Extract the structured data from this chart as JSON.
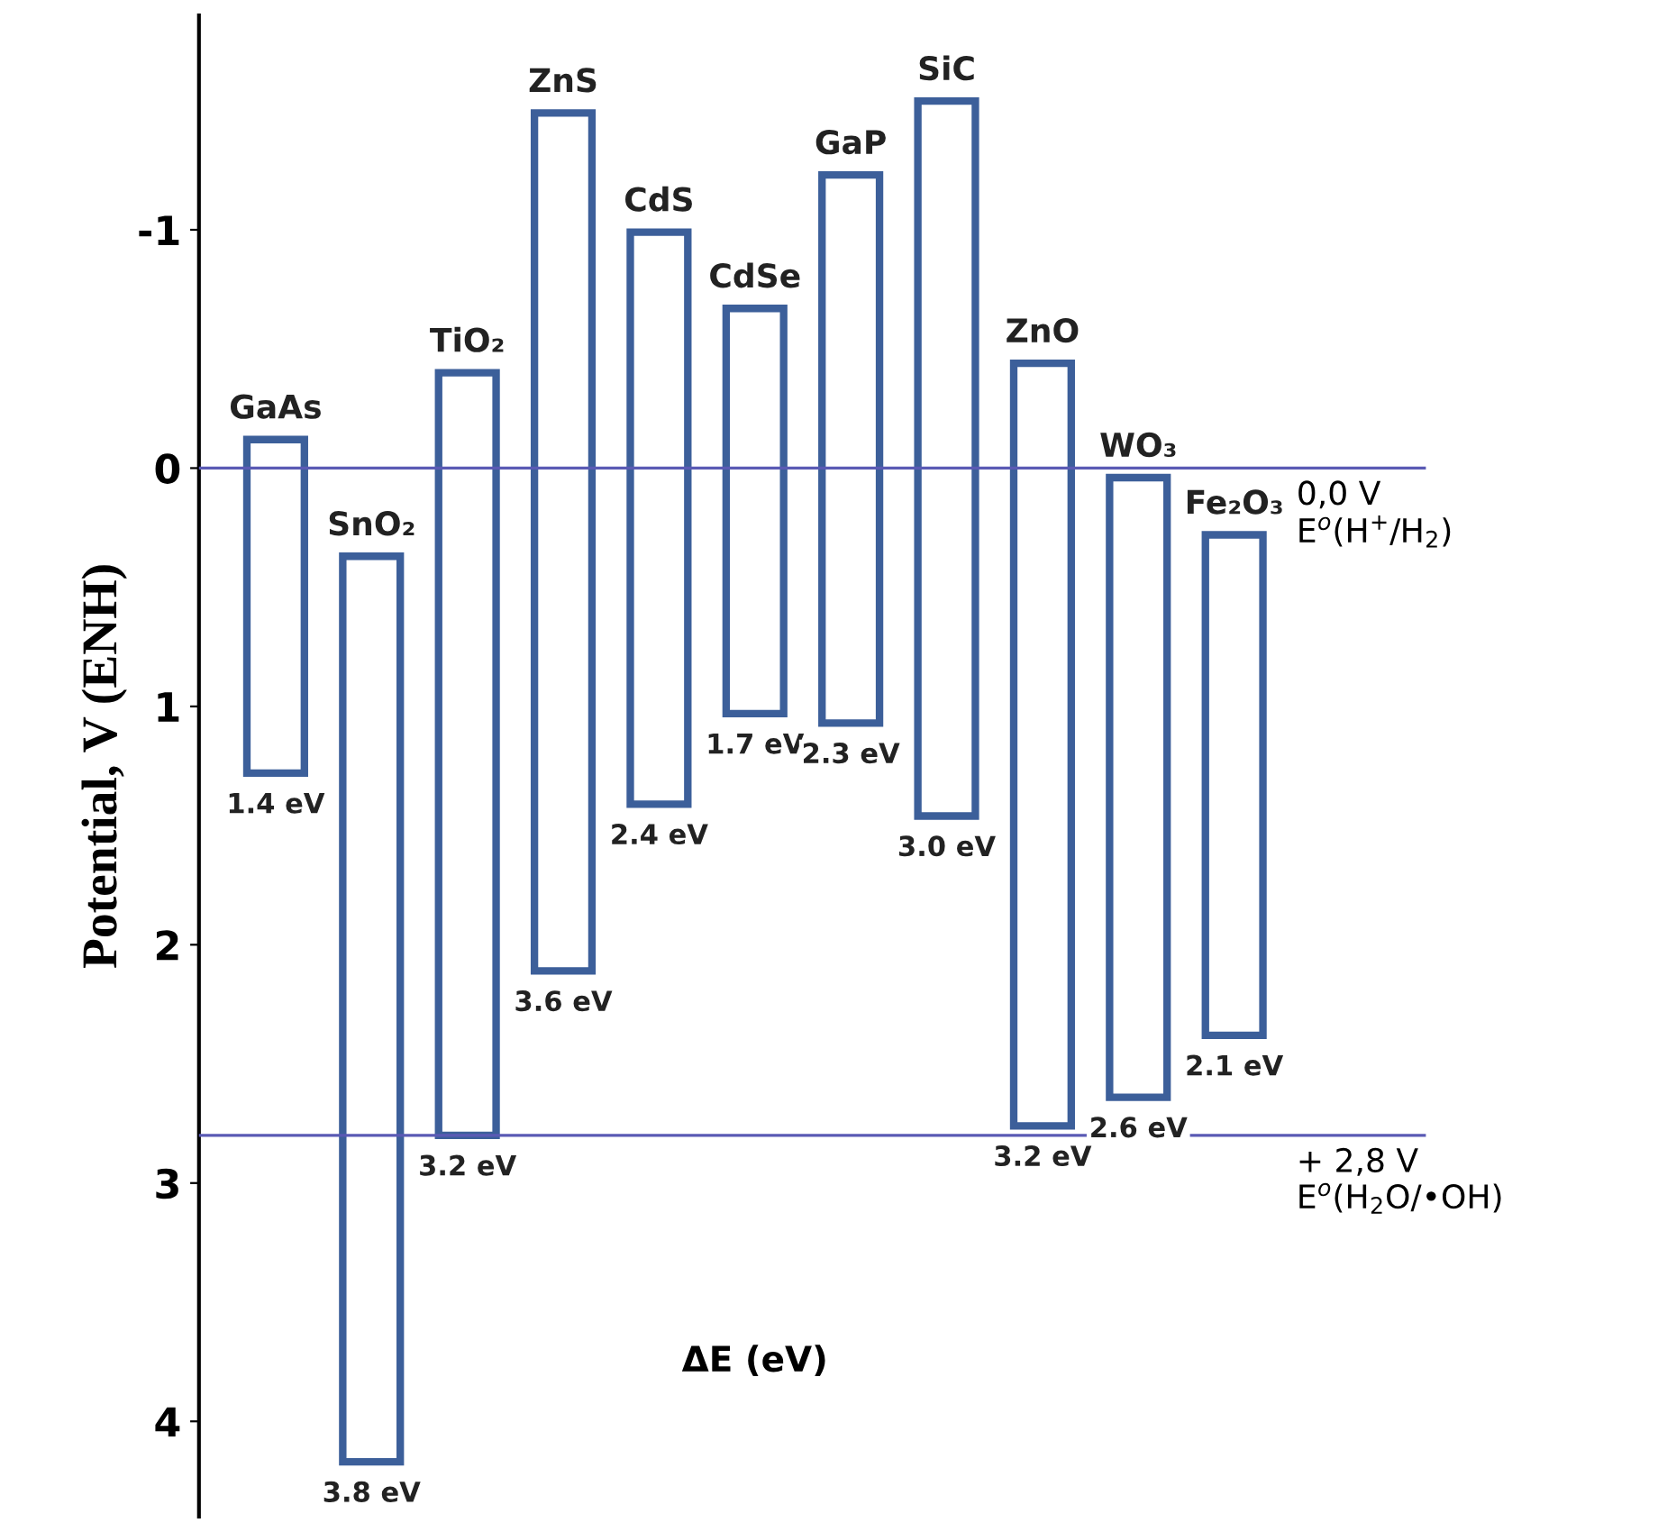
{
  "chart_data": {
    "type": "bar",
    "categories": [
      "GaAs",
      "SnO₂",
      "TiO₂",
      "ZnS",
      "CdS",
      "CdSe",
      "GaP",
      "SiC",
      "ZnO",
      "WO₃",
      "Fe₂O₃"
    ],
    "base": [
      -0.12,
      0.37,
      -0.4,
      -1.49,
      -0.99,
      -0.67,
      -1.23,
      -1.54,
      -0.44,
      0.04,
      0.28
    ],
    "values": [
      1.4,
      3.8,
      3.2,
      3.6,
      2.4,
      1.7,
      2.3,
      3.0,
      3.2,
      2.6,
      2.1
    ],
    "value_labels": [
      "1.4 eV",
      "3.8 eV",
      "3.2 eV",
      "3.6 eV",
      "2.4 eV",
      "1.7 eV",
      "2.3 eV",
      "3.0 eV",
      "3.2 eV",
      "2.6 eV",
      "2.1 eV"
    ],
    "color": "#3c5f9a",
    "xlabel": "ΔE (eV)",
    "ylabel": "Potential, V (ENH)",
    "ylim": [
      4.4,
      -1.9
    ],
    "yticks": [
      -1,
      0,
      1,
      2,
      3,
      4
    ],
    "ref_lines": [
      {
        "axis": "y",
        "value": 0,
        "label": "0,0 V\nE$^{o}$(H$^{+}$/H$_{2}$)",
        "color": "#5a5ab4"
      },
      {
        "axis": "y",
        "value": 2.8,
        "label": "+ 2,8 V\nE$^{o}$(H$_{2}$O/•OH)",
        "color": "#5a5ab4"
      }
    ],
    "grid": false,
    "legend": false
  }
}
